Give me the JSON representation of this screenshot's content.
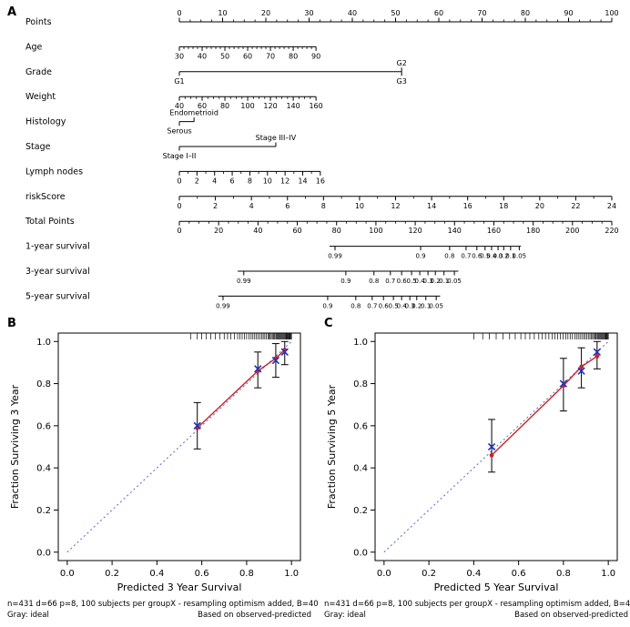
{
  "panels": {
    "a": {
      "label": "A"
    },
    "b": {
      "label": "B"
    },
    "c": {
      "label": "C"
    }
  },
  "colors": {
    "axis": "#000000",
    "background": "#ffffff",
    "ideal_line": "#5566cc",
    "corrected_marker": "#2233bb",
    "apparent_line": "#cc2222",
    "error_bar": "#000000"
  },
  "chart_data": [
    {
      "type": "nomogram",
      "panel": "A",
      "rows": [
        {
          "label": "Points",
          "labels": "above",
          "frac": [
            0,
            1
          ],
          "values": [
            0,
            10,
            20,
            30,
            40,
            50,
            60,
            70,
            80,
            90,
            100
          ],
          "minor": 4
        },
        {
          "label": "Age",
          "labels": "below",
          "frac": [
            0,
            0.316
          ],
          "values": [
            30,
            40,
            50,
            60,
            70,
            80,
            90
          ],
          "minor": 5
        },
        {
          "label": "Grade",
          "frac": [
            0,
            0.514
          ],
          "ticks": [
            {
              "t": "G1",
              "p": 0,
              "side": "below"
            },
            {
              "t": "G2",
              "p": 0.514,
              "side": "above"
            },
            {
              "t": "G3",
              "p": 0.514,
              "side": "below"
            }
          ]
        },
        {
          "label": "Weight",
          "labels": "below",
          "frac": [
            0,
            0.316
          ],
          "values": [
            40,
            60,
            80,
            100,
            120,
            140,
            160
          ],
          "minor": 4
        },
        {
          "label": "Histology",
          "frac": [
            0,
            0.034
          ],
          "ticks": [
            {
              "t": "Serous",
              "p": 0,
              "side": "below"
            },
            {
              "t": "Endometrioid",
              "p": 0.034,
              "side": "above"
            }
          ]
        },
        {
          "label": "Stage",
          "frac": [
            0,
            0.223
          ],
          "ticks": [
            {
              "t": "Stage I–II",
              "p": 0,
              "side": "below"
            },
            {
              "t": "Stage III–IV",
              "p": 0.223,
              "side": "above"
            }
          ]
        },
        {
          "label": "Lymph nodes",
          "labels": "below",
          "frac": [
            0,
            0.326
          ],
          "values": [
            0,
            2,
            4,
            6,
            8,
            10,
            12,
            14,
            16
          ],
          "minor": 2
        },
        {
          "label": "riskScore",
          "labels": "below",
          "frac": [
            0,
            1
          ],
          "values": [
            0,
            2,
            4,
            6,
            8,
            10,
            12,
            14,
            16,
            18,
            20,
            22,
            24
          ],
          "minor": 2
        },
        {
          "label": "Total Points",
          "labels": "below",
          "frac": [
            0,
            1
          ],
          "values": [
            0,
            20,
            40,
            60,
            80,
            100,
            120,
            140,
            160,
            180,
            200,
            220
          ],
          "minor": 4
        },
        {
          "label": "1-year survival",
          "small": true,
          "frac": [
            0.347,
            0.79
          ],
          "ticks": [
            {
              "t": "0.99",
              "p": 0.36
            },
            {
              "t": "0.9",
              "p": 0.558
            },
            {
              "t": "0.8",
              "p": 0.625
            },
            {
              "t": "0.7",
              "p": 0.663
            },
            {
              "t": "0.6",
              "p": 0.688
            },
            {
              "t": "0.5",
              "p": 0.707
            },
            {
              "t": "0.4",
              "p": 0.722
            },
            {
              "t": "0.3",
              "p": 0.737
            },
            {
              "t": "0.2",
              "p": 0.75
            },
            {
              "t": "0.1",
              "p": 0.766
            },
            {
              "t": "0.05",
              "p": 0.786
            }
          ]
        },
        {
          "label": "3-year survival",
          "small": true,
          "frac": [
            0.135,
            0.645
          ],
          "ticks": [
            {
              "t": "0.99",
              "p": 0.149
            },
            {
              "t": "0.9",
              "p": 0.385
            },
            {
              "t": "0.8",
              "p": 0.45
            },
            {
              "t": "0.7",
              "p": 0.488
            },
            {
              "t": "0.6",
              "p": 0.514
            },
            {
              "t": "0.5",
              "p": 0.537
            },
            {
              "t": "0.4",
              "p": 0.556
            },
            {
              "t": "0.3",
              "p": 0.575
            },
            {
              "t": "0.2",
              "p": 0.592
            },
            {
              "t": "0.1",
              "p": 0.612
            },
            {
              "t": "0.05",
              "p": 0.636
            }
          ]
        },
        {
          "label": "5-year survival",
          "small": true,
          "frac": [
            0.09,
            0.603
          ],
          "ticks": [
            {
              "t": "0.99",
              "p": 0.101
            },
            {
              "t": "0.9",
              "p": 0.343
            },
            {
              "t": "0.8",
              "p": 0.408
            },
            {
              "t": "0.7",
              "p": 0.446
            },
            {
              "t": "0.6",
              "p": 0.472
            },
            {
              "t": "0.5",
              "p": 0.495
            },
            {
              "t": "0.4",
              "p": 0.514
            },
            {
              "t": "0.3",
              "p": 0.533
            },
            {
              "t": "0.2",
              "p": 0.549
            },
            {
              "t": "0.1",
              "p": 0.57
            },
            {
              "t": "0.05",
              "p": 0.594
            }
          ]
        }
      ]
    },
    {
      "type": "calibration",
      "panel": "B",
      "xlabel": "Predicted 3 Year Survival",
      "ylabel": "Fraction Surviving 3 Year",
      "xlim": [
        0,
        1
      ],
      "ylim": [
        0,
        1
      ],
      "xticks": [
        0,
        0.2,
        0.4,
        0.6,
        0.8,
        1
      ],
      "yticks": [
        0,
        0.2,
        0.4,
        0.6,
        0.8,
        1
      ],
      "groups": [
        {
          "predicted": 0.58,
          "corrected": 0.6,
          "apparent": 0.59,
          "ci_low": 0.49,
          "ci_high": 0.71
        },
        {
          "predicted": 0.85,
          "corrected": 0.87,
          "apparent": 0.86,
          "ci_low": 0.78,
          "ci_high": 0.95
        },
        {
          "predicted": 0.93,
          "corrected": 0.91,
          "apparent": 0.92,
          "ci_low": 0.83,
          "ci_high": 0.99
        },
        {
          "predicted": 0.97,
          "corrected": 0.95,
          "apparent": 0.96,
          "ci_low": 0.89,
          "ci_high": 1.0
        }
      ],
      "rug": [
        0.55,
        0.58,
        0.6,
        0.62,
        0.64,
        0.66,
        0.68,
        0.7,
        0.715,
        0.73,
        0.745,
        0.76,
        0.77,
        0.78,
        0.79,
        0.8,
        0.81,
        0.82,
        0.828,
        0.836,
        0.844,
        0.852,
        0.86,
        0.867,
        0.874,
        0.881,
        0.888,
        0.895,
        0.9,
        0.905,
        0.91,
        0.915,
        0.92,
        0.925,
        0.93,
        0.934,
        0.938,
        0.942,
        0.946,
        0.95,
        0.954,
        0.958,
        0.962,
        0.966,
        0.97,
        0.973,
        0.976,
        0.979,
        0.982,
        0.985,
        0.988,
        0.991,
        0.994,
        0.997,
        1.0
      ],
      "caption": {
        "l1_left": "n=431 d=66 p=8, 100 subjects per group",
        "l1_right": "X - resampling optimism added, B=40",
        "l2_left": "Gray: ideal",
        "l2_right": "Based on observed-predicted"
      }
    },
    {
      "type": "calibration",
      "panel": "C",
      "xlabel": "Predicted 5 Year Survival",
      "ylabel": "Fraction Surviving 5 Year",
      "xlim": [
        0,
        1
      ],
      "ylim": [
        0,
        1
      ],
      "xticks": [
        0,
        0.2,
        0.4,
        0.6,
        0.8,
        1
      ],
      "yticks": [
        0,
        0.2,
        0.4,
        0.6,
        0.8,
        1
      ],
      "groups": [
        {
          "predicted": 0.48,
          "corrected": 0.5,
          "apparent": 0.46,
          "ci_low": 0.38,
          "ci_high": 0.63
        },
        {
          "predicted": 0.8,
          "corrected": 0.8,
          "apparent": 0.79,
          "ci_low": 0.67,
          "ci_high": 0.92
        },
        {
          "predicted": 0.88,
          "corrected": 0.86,
          "apparent": 0.88,
          "ci_low": 0.78,
          "ci_high": 0.97
        },
        {
          "predicted": 0.95,
          "corrected": 0.95,
          "apparent": 0.93,
          "ci_low": 0.87,
          "ci_high": 1.0
        }
      ],
      "rug": [
        0.4,
        0.44,
        0.47,
        0.5,
        0.53,
        0.56,
        0.585,
        0.61,
        0.63,
        0.65,
        0.67,
        0.69,
        0.705,
        0.72,
        0.735,
        0.75,
        0.762,
        0.774,
        0.786,
        0.798,
        0.81,
        0.82,
        0.83,
        0.84,
        0.85,
        0.858,
        0.866,
        0.874,
        0.882,
        0.89,
        0.897,
        0.904,
        0.911,
        0.918,
        0.925,
        0.93,
        0.935,
        0.94,
        0.945,
        0.95,
        0.954,
        0.958,
        0.962,
        0.966,
        0.97,
        0.974,
        0.978,
        0.982,
        0.985,
        0.988,
        0.991,
        0.994,
        0.997,
        1.0
      ],
      "caption": {
        "l1_left": "n=431 d=66 p=8, 100 subjects per group",
        "l1_right": "X - resampling optimism added, B=40",
        "l2_left": "Gray: ideal",
        "l2_right": "Based on observed-predicted"
      }
    }
  ]
}
